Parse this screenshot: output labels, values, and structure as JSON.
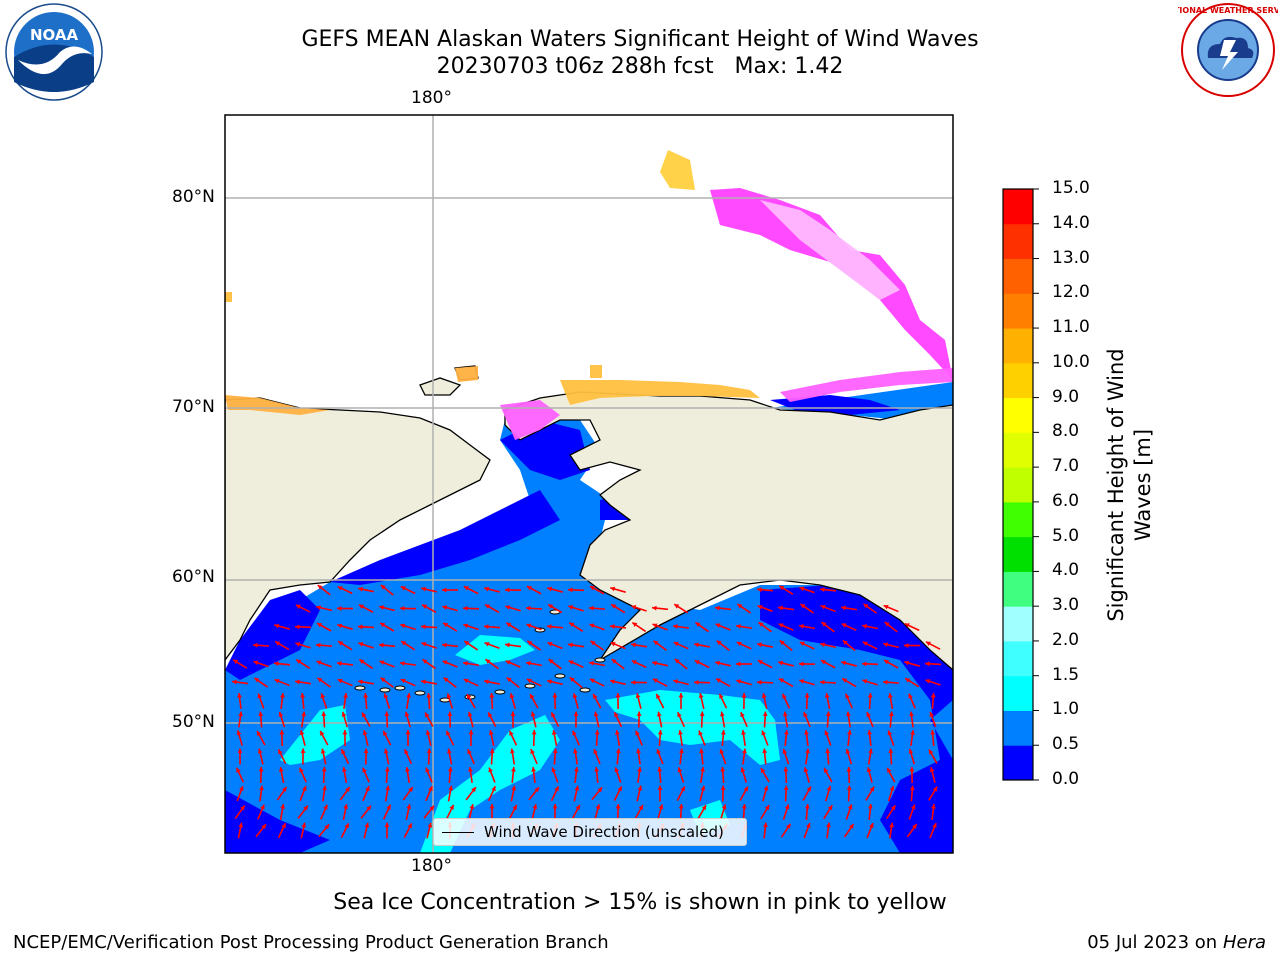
{
  "header": {
    "title_line1": "GEFS MEAN Alaskan Waters Significant Height of Wind Waves",
    "title_line2": "20230703 t06z 288h fcst   Max: 1.42"
  },
  "logos": {
    "left_text": "NOAA",
    "right_text": "NATIONAL WEATHER SERVICE"
  },
  "map": {
    "lon_label_top": "180°",
    "lon_label_bottom": "180°",
    "lat_labels": [
      "80°N",
      "70°N",
      "60°N",
      "50°N"
    ],
    "legend_label": "Wind Wave Direction (unscaled)",
    "colors": {
      "land": "#efeedd",
      "ocean_low": "#0000ff",
      "ocean_mid": "#0080ff",
      "ocean_high": "#00ffff",
      "arrow": "#ff0000",
      "ice": "#ff00ff"
    }
  },
  "colorbar": {
    "title": "Significant Height of Wind Waves [m]",
    "ticks": [
      "0.0",
      "0.5",
      "1.0",
      "1.5",
      "2.0",
      "3.0",
      "4.0",
      "5.0",
      "6.0",
      "7.0",
      "8.0",
      "9.0",
      "10.0",
      "11.0",
      "12.0",
      "13.0",
      "14.0",
      "15.0"
    ],
    "colors": [
      "#0000ff",
      "#0080ff",
      "#00ffff",
      "#40ffff",
      "#a0ffff",
      "#40ff80",
      "#00e000",
      "#40ff00",
      "#c0ff00",
      "#e0ff00",
      "#ffff00",
      "#ffd000",
      "#ffb000",
      "#ff8000",
      "#ff6000",
      "#ff3000",
      "#ff0000"
    ]
  },
  "note": "Sea Ice Concentration > 15% is shown in pink to yellow",
  "footer": {
    "left": "NCEP/EMC/Verification Post Processing Product Generation Branch",
    "right_prefix": "05 Jul 2023 on ",
    "right_machine": "Hera"
  }
}
